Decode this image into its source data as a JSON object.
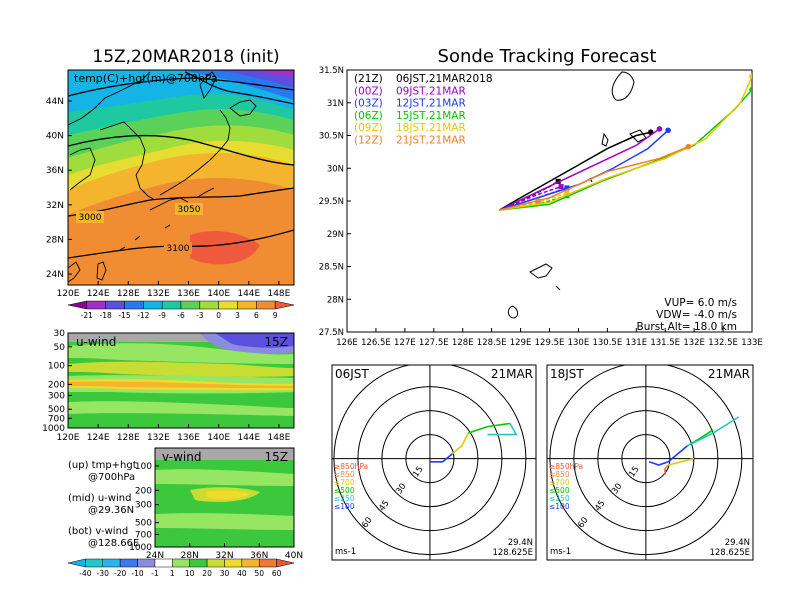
{
  "titles": {
    "left": "15Z,20MAR2018 (init)",
    "right": "Sonde Tracking Forecast"
  },
  "colors": {
    "track_21Z": "#000000",
    "track_00Z": "#a000c8",
    "track_03Z": "#1e3cff",
    "track_06Z": "#00c800",
    "track_09Z": "#e6c800",
    "track_12Z": "#f08228"
  },
  "panels": {
    "upper_label": "temp(C)+hgt(m)@700hPa",
    "mid_label": "u-wind",
    "mid_time": "15Z",
    "bot_label": "v-wind",
    "bot_time": "15Z"
  },
  "contour_labels": [
    "3000",
    "3050",
    "3100"
  ],
  "legend_text": {
    "up_1": "(up)  tmp+hgt",
    "up_2": "@700hPa",
    "mid_1": "(mid)  u-wind",
    "mid_2": "@29.36N",
    "bot_1": "(bot)  v-wind",
    "bot_2": "@128.66E"
  },
  "colorbar_temp": {
    "labels": [
      "-21",
      "-18",
      "-15",
      "-12",
      "-9",
      "-6",
      "-3",
      "0",
      "3",
      "6",
      "9"
    ],
    "colors": [
      "#8c0096",
      "#a030c8",
      "#5a50dc",
      "#2878f0",
      "#14b4e6",
      "#1ec8a0",
      "#5ad25a",
      "#a0dc3c",
      "#e6dc32",
      "#f5b42d",
      "#f08c32",
      "#f05a3c"
    ]
  },
  "colorbar_wind": {
    "labels": [
      "-40",
      "-30",
      "-20",
      "-10",
      "-1",
      "1",
      "10",
      "20",
      "30",
      "40",
      "50",
      "60"
    ],
    "colors": [
      "#14b4e6",
      "#1ec8c8",
      "#28b4f0",
      "#3c78f0",
      "#8c8cdc",
      "#ffffff",
      "#96e664",
      "#3cc83c",
      "#c8dc32",
      "#f0dc28",
      "#f5b42d",
      "#f07832",
      "#f0503c"
    ]
  },
  "axes": {
    "map_lon_ticks": [
      "120E",
      "124E",
      "128E",
      "132E",
      "136E",
      "140E",
      "144E",
      "148E"
    ],
    "map_lat_ticks": [
      "24N",
      "28N",
      "32N",
      "36N",
      "40N",
      "44N"
    ],
    "pres_ticks": [
      "30",
      "50",
      "100",
      "200",
      "300",
      "500",
      "700",
      "1000"
    ],
    "pres_ticks_bot": [
      "100",
      "200",
      "300",
      "500",
      "700",
      "1000"
    ],
    "vlat_ticks": [
      "24N",
      "28N",
      "32N",
      "36N",
      "40N"
    ],
    "track_lon_ticks": [
      "126E",
      "126.5E",
      "127E",
      "127.5E",
      "128E",
      "128.5E",
      "129E",
      "129.5E",
      "130E",
      "130.5E",
      "131E",
      "131.5E",
      "132E",
      "132.5E",
      "133E"
    ],
    "track_lat_ticks": [
      "27.5N",
      "28N",
      "28.5N",
      "29N",
      "29.5N",
      "30N",
      "30.5N",
      "31N",
      "31.5N"
    ]
  },
  "track_legend": [
    {
      "run": "(21Z)",
      "text": "06JST,21MAR2018",
      "color": "#000000"
    },
    {
      "run": "(00Z)",
      "text": "09JST,21MAR",
      "color": "#a000c8"
    },
    {
      "run": "(03Z)",
      "text": "12JST,21MAR",
      "color": "#1e3cff"
    },
    {
      "run": "(06Z)",
      "text": "15JST,21MAR",
      "color": "#00c800"
    },
    {
      "run": "(09Z)",
      "text": "18JST,21MAR",
      "color": "#e6c800"
    },
    {
      "run": "(12Z)",
      "text": "21JST,21MAR",
      "color": "#f08228"
    }
  ],
  "sonde_params": {
    "vup": "VUP= 6.0 m/s",
    "vdw": "VDW= -4.0 m/s",
    "burst": "Burst Alt= 18.0 km"
  },
  "chart_data": [
    {
      "type": "line",
      "name": "sonde_tracks",
      "xlim": [
        126,
        133
      ],
      "ylim": [
        27.5,
        31.5
      ],
      "launch": [
        128.63,
        29.36
      ],
      "series": [
        {
          "run": "21Z",
          "ascent": [
            [
              128.63,
              29.36
            ],
            [
              129.0,
              29.55
            ],
            [
              129.5,
              29.8
            ],
            [
              130.0,
              30.05
            ],
            [
              130.5,
              30.3
            ],
            [
              131.0,
              30.5
            ],
            [
              131.25,
              30.55
            ]
          ],
          "descent": [
            [
              128.63,
              29.36
            ],
            [
              129.0,
              29.5
            ],
            [
              129.5,
              29.72
            ],
            [
              129.65,
              29.8
            ]
          ]
        },
        {
          "run": "00Z",
          "ascent": [
            [
              128.63,
              29.36
            ],
            [
              129.2,
              29.6
            ],
            [
              129.8,
              29.85
            ],
            [
              130.4,
              30.1
            ],
            [
              131.0,
              30.35
            ],
            [
              131.4,
              30.6
            ]
          ],
          "descent": [
            [
              128.63,
              29.36
            ],
            [
              129.3,
              29.6
            ],
            [
              129.7,
              29.72
            ]
          ]
        },
        {
          "run": "03Z",
          "ascent": [
            [
              128.63,
              29.36
            ],
            [
              129.3,
              29.55
            ],
            [
              130.0,
              29.75
            ],
            [
              130.6,
              30.0
            ],
            [
              131.2,
              30.3
            ],
            [
              131.55,
              30.58
            ]
          ],
          "descent": [
            [
              128.63,
              29.36
            ],
            [
              129.3,
              29.55
            ],
            [
              129.8,
              29.7
            ]
          ]
        },
        {
          "run": "06Z",
          "ascent": [
            [
              128.63,
              29.36
            ],
            [
              129.5,
              29.45
            ],
            [
              130.4,
              29.8
            ],
            [
              131.3,
              30.1
            ],
            [
              132.0,
              30.35
            ],
            [
              132.7,
              30.9
            ],
            [
              133.0,
              31.2
            ]
          ],
          "descent": [
            [
              128.63,
              29.36
            ],
            [
              129.3,
              29.45
            ],
            [
              129.8,
              29.58
            ]
          ]
        },
        {
          "run": "09Z",
          "ascent": [
            [
              128.63,
              29.36
            ],
            [
              129.5,
              29.48
            ],
            [
              130.5,
              29.85
            ],
            [
              131.5,
              30.15
            ],
            [
              132.2,
              30.45
            ],
            [
              132.8,
              31.0
            ],
            [
              133.0,
              31.4
            ]
          ],
          "descent": [
            [
              128.63,
              29.36
            ],
            [
              129.3,
              29.48
            ],
            [
              129.8,
              29.62
            ]
          ]
        },
        {
          "run": "12Z",
          "ascent": [
            [
              128.63,
              29.36
            ],
            [
              129.5,
              29.55
            ],
            [
              130.5,
              29.95
            ],
            [
              131.4,
              30.15
            ],
            [
              131.9,
              30.33
            ]
          ],
          "descent": [
            [
              128.63,
              29.36
            ],
            [
              129.3,
              29.5
            ]
          ]
        }
      ]
    },
    {
      "type": "polar",
      "name": "hodograph_06JST",
      "label_left": "06JST",
      "label_right": "21MAR",
      "unit": "ms-1",
      "rings": [
        "15",
        "30",
        "45",
        "60"
      ],
      "pressure_legend": [
        "≥850hPa",
        "≤850",
        "≤700",
        "≤500",
        "≤250",
        "≤100"
      ],
      "legend_colors": [
        "#f05a3c",
        "#f08c32",
        "#e6c800",
        "#00c800",
        "#1ec8c8",
        "#1e3cff"
      ],
      "lat": "29.4N",
      "lon": "128.625E",
      "segments": [
        {
          "color": "#1e3cff",
          "points": [
            [
              0,
              -2
            ],
            [
              8,
              -2
            ],
            [
              14,
              3
            ]
          ]
        },
        {
          "color": "#e6c800",
          "points": [
            [
              14,
              3
            ],
            [
              20,
              8
            ],
            [
              24,
              16
            ]
          ]
        },
        {
          "color": "#00c800",
          "points": [
            [
              24,
              16
            ],
            [
              36,
              20
            ],
            [
              50,
              22
            ]
          ]
        },
        {
          "color": "#1ec8c8",
          "points": [
            [
              50,
              22
            ],
            [
              54,
              15
            ],
            [
              36,
              15
            ]
          ]
        }
      ]
    },
    {
      "type": "polar",
      "name": "hodograph_18JST",
      "label_left": "18JST",
      "label_right": "21MAR",
      "unit": "ms-1",
      "rings": [
        "15",
        "30",
        "45",
        "60"
      ],
      "pressure_legend": [
        "≥850hPa",
        "≤850",
        "≤700",
        "≤500",
        "≤250",
        "≤100"
      ],
      "legend_colors": [
        "#f05a3c",
        "#f08c32",
        "#e6c800",
        "#00c800",
        "#1ec8c8",
        "#1e3cff"
      ],
      "lat": "29.4N",
      "lon": "128.625E",
      "segments": [
        {
          "color": "#f05a3c",
          "points": [
            [
              12,
              -10
            ],
            [
              12,
              -6
            ]
          ]
        },
        {
          "color": "#f08c32",
          "points": [
            [
              12,
              -6
            ],
            [
              14,
              -4
            ]
          ]
        },
        {
          "color": "#e6c800",
          "points": [
            [
              14,
              -4
            ],
            [
              22,
              -2
            ],
            [
              30,
              0
            ]
          ]
        },
        {
          "color": "#1e3cff",
          "points": [
            [
              2,
              -2
            ],
            [
              8,
              -4
            ],
            [
              14,
              -2
            ],
            [
              26,
              8
            ]
          ]
        },
        {
          "color": "#00c800",
          "points": [
            [
              26,
              8
            ],
            [
              36,
              14
            ],
            [
              42,
              18
            ]
          ]
        },
        {
          "color": "#1ec8c8",
          "points": [
            [
              26,
              8
            ],
            [
              42,
              16
            ],
            [
              58,
              26
            ]
          ]
        }
      ]
    }
  ]
}
